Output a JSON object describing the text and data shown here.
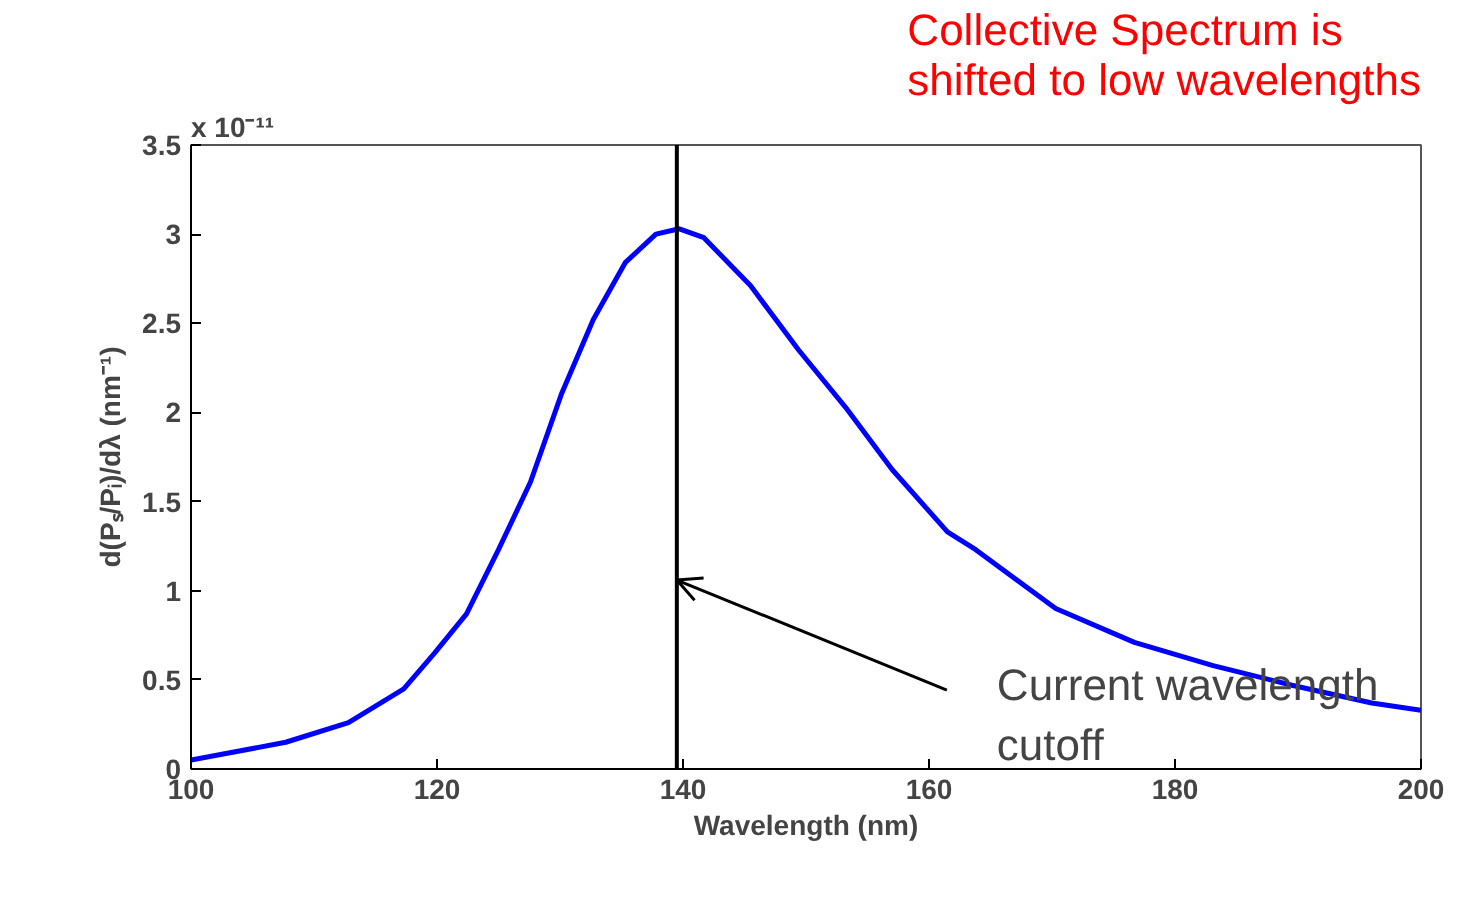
{
  "chart_data": {
    "type": "line",
    "xlabel": "Wavelength (nm)",
    "ylabel": "d(Pₛ/Pᵢ)/dλ (nm⁻¹)",
    "x": [
      100,
      107.7,
      112.8,
      117.3,
      119.8,
      122.4,
      125,
      127.6,
      130.1,
      132.7,
      135.3,
      137.8,
      139.7,
      141.7,
      145.5,
      149.4,
      153.2,
      157,
      161.5,
      163.8,
      170.3,
      176.7,
      183.1,
      189.5,
      196,
      200
    ],
    "series": [
      {
        "color": "#0000ff",
        "values": [
          0.05,
          0.15,
          0.26,
          0.45,
          0.65,
          0.87,
          1.23,
          1.61,
          2.1,
          2.52,
          2.84,
          3.0,
          3.03,
          2.98,
          2.71,
          2.35,
          2.03,
          1.68,
          1.33,
          1.23,
          0.9,
          0.71,
          0.58,
          0.47,
          0.37,
          0.33
        ]
      }
    ],
    "xlim": [
      100,
      200
    ],
    "xticks": [
      100,
      120,
      140,
      160,
      180,
      200
    ],
    "ylim": [
      0,
      3.5
    ],
    "yticks": [
      0,
      0.5,
      1,
      1.5,
      2,
      2.5,
      3,
      3.5
    ],
    "ref_lines": [
      {
        "axis": "x",
        "value": 139.5,
        "color": "#000000"
      }
    ],
    "annotations": [
      "x 10⁻¹¹",
      "Collective Spectrum is\nshifted to low wavelengths",
      {
        "text": "Current wavelength\ncutoff",
        "x": 139.5,
        "y": 1.06
      }
    ],
    "grid": false,
    "marker": "none",
    "line_style": "solid"
  }
}
